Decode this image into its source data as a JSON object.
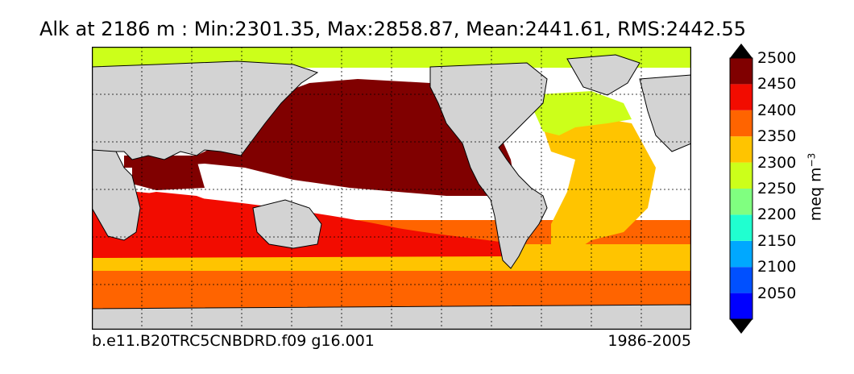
{
  "title": "Alk at 2186 m : Min:2301.35, Max:2858.87, Mean:2441.61, RMS:2442.55",
  "footer": {
    "case_name": "b.e11.B20TRC5CNBDRD.f09 g16.001",
    "years": "1986-2005"
  },
  "colorbar": {
    "units": "meq m",
    "units_exponent": "−3",
    "ticks": [
      "2050",
      "2100",
      "2150",
      "2200",
      "2250",
      "2300",
      "2350",
      "2400",
      "2450",
      "2500"
    ],
    "colors": [
      "#00007f",
      "#0000ff",
      "#0050ff",
      "#00a8ff",
      "#20ffd0",
      "#80ff80",
      "#ccff1a",
      "#ffc400",
      "#ff6400",
      "#f20c00",
      "#800000"
    ],
    "extend": "both"
  },
  "map": {
    "projection": "cylindrical, Pacific-centered",
    "land_color": "#d3d3d3",
    "missing_color": "#ffffff",
    "gridlines": "dashed"
  }
}
